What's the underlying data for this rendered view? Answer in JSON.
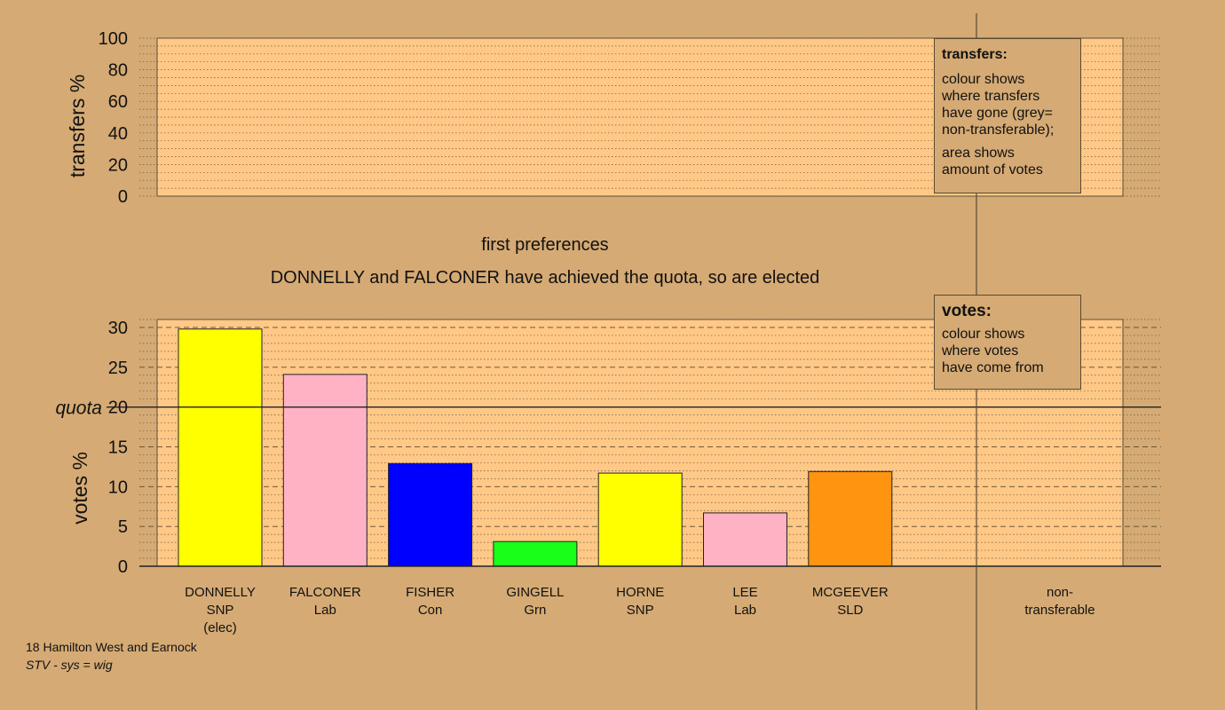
{
  "round_label": "first preferences",
  "status_text": "DONNELLY and FALCONER have achieved the quota, so are elected",
  "transfers_legend": {
    "title": "transfers:",
    "text1": "colour shows\nwhere transfers\nhave gone (grey=\nnon-transferable);",
    "text2": "area shows\namount of votes"
  },
  "votes_legend": {
    "title": "votes:",
    "text": "colour shows\nwhere votes\nhave come from"
  },
  "footer": {
    "constituency": "18 Hamilton West and Earnock",
    "system_prefix": "STV - sys = wig"
  },
  "colors": {
    "background": "#d5aa74",
    "plot_fill": "#ffc887",
    "SNP": "#ffff00",
    "Lab": "#ffb2c4",
    "Con": "#0000ff",
    "Grn": "#1aff1a",
    "SLD": "#ff9410"
  },
  "chart_data": [
    {
      "type": "bar",
      "ylabel": "transfers %",
      "ylim": [
        0,
        100
      ],
      "yticks": [
        0,
        20,
        40,
        60,
        80,
        100
      ],
      "grid": true,
      "series": []
    },
    {
      "type": "bar",
      "ylabel": "votes %",
      "ylim": [
        0,
        31
      ],
      "yticks": [
        0,
        5,
        10,
        15,
        20,
        25,
        30
      ],
      "quota": 20,
      "quota_label": "quota",
      "grid": true,
      "categories": [
        {
          "name": "DONNELLY",
          "party": "SNP",
          "note": "(elec)",
          "color": "#ffff00"
        },
        {
          "name": "FALCONER",
          "party": "Lab",
          "note": "",
          "color": "#ffb2c4"
        },
        {
          "name": "FISHER",
          "party": "Con",
          "note": "",
          "color": "#0000ff"
        },
        {
          "name": "GINGELL",
          "party": "Grn",
          "note": "",
          "color": "#1aff1a"
        },
        {
          "name": "HORNE",
          "party": "SNP",
          "note": "",
          "color": "#ffff00"
        },
        {
          "name": "LEE",
          "party": "Lab",
          "note": "",
          "color": "#ffb2c4"
        },
        {
          "name": "MCGEEVER",
          "party": "SLD",
          "note": "",
          "color": "#ff9410"
        }
      ],
      "values": [
        29.8,
        24.1,
        12.9,
        3.1,
        11.7,
        6.7,
        11.9
      ],
      "extra_column_label": "non-\ntransferable",
      "extra_column_value": 0
    }
  ]
}
